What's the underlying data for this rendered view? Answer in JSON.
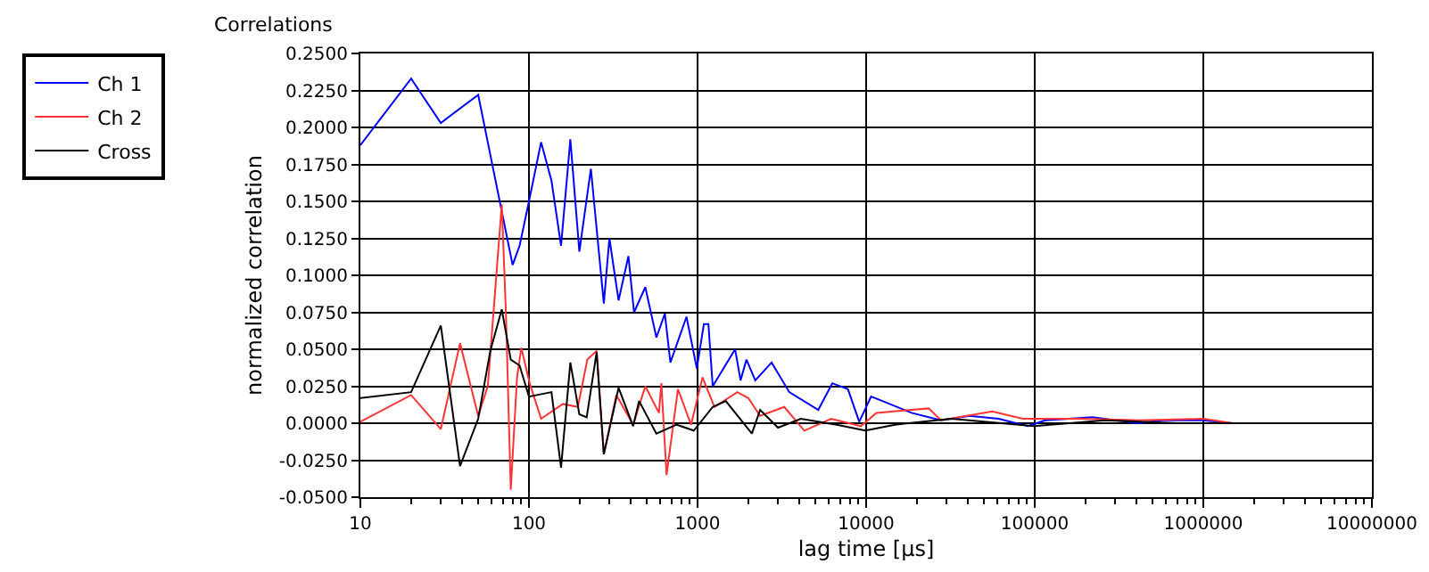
{
  "chart_data": {
    "type": "line",
    "title": "Correlations",
    "xlabel": "lag time [µs]",
    "ylabel": "normalized correlation",
    "log": "x",
    "grid": true,
    "legend": "top left",
    "marker": "none",
    "line_style": "solid",
    "xlim": [
      10,
      10000000
    ],
    "xticks": [
      10,
      100,
      1000,
      10000,
      100000,
      1000000,
      10000000
    ],
    "ylim": [
      -0.05,
      0.25
    ],
    "yticks": [
      {
        "value": -0.05,
        "label": "-0.0500"
      },
      {
        "value": -0.025,
        "label": "-0.0250"
      },
      {
        "value": 0,
        "label": "0.0000"
      },
      {
        "value": 0.025,
        "label": "0.0250"
      },
      {
        "value": 0.05,
        "label": "0.0500"
      },
      {
        "value": 0.075,
        "label": "0.0750"
      },
      {
        "value": 0.1,
        "label": "0.1000"
      },
      {
        "value": 0.125,
        "label": "0.1250"
      },
      {
        "value": 0.15,
        "label": "0.1500"
      },
      {
        "value": 0.175,
        "label": "0.1750"
      },
      {
        "value": 0.2,
        "label": "0.2000"
      },
      {
        "value": 0.225,
        "label": "0.2250"
      },
      {
        "value": 0.25,
        "label": "0.2500"
      }
    ],
    "series": [
      {
        "name": "Ch 1",
        "color": "#0000ff",
        "x": [
          10,
          20,
          30,
          50,
          80,
          88,
          100,
          118,
          136,
          155,
          176,
          199,
          233,
          278,
          300,
          340,
          389,
          420,
          490,
          570,
          640,
          690,
          860,
          990,
          1090,
          1160,
          1230,
          1260,
          1670,
          1800,
          1950,
          2200,
          2750,
          3500,
          5200,
          6300,
          7800,
          9100,
          10700,
          12500,
          18600,
          27800,
          41000,
          61000,
          91000,
          115000,
          220000,
          410000,
          570000,
          1000000,
          1500000
        ],
        "values": [
          0.188,
          0.233,
          0.203,
          0.222,
          0.107,
          0.12,
          0.15,
          0.19,
          0.164,
          0.12,
          0.192,
          0.116,
          0.172,
          0.081,
          0.125,
          0.083,
          0.113,
          0.075,
          0.092,
          0.058,
          0.074,
          0.041,
          0.072,
          0.037,
          0.067,
          0.067,
          0.025,
          0.027,
          0.05,
          0.029,
          0.043,
          0.029,
          0.041,
          0.021,
          0.009,
          0.027,
          0.023,
          0.001,
          0.018,
          0.015,
          0.007,
          0.002,
          0.005,
          0.003,
          -0.002,
          0.002,
          0.004,
          0,
          0.002,
          0.002,
          0
        ]
      },
      {
        "name": "Ch 2",
        "color": "#ff3333",
        "x": [
          10,
          20,
          30,
          39,
          50,
          57,
          69,
          73,
          78,
          85,
          90,
          101,
          118,
          159,
          195,
          222,
          252,
          278,
          330,
          415,
          490,
          590,
          610,
          655,
          765,
          915,
          1070,
          1260,
          1720,
          2000,
          2350,
          3270,
          4300,
          6200,
          9300,
          11500,
          23500,
          27800,
          56000,
          85000,
          185000,
          410000,
          1000000,
          1500000
        ],
        "values": [
          0.001,
          0.019,
          -0.004,
          0.054,
          0.005,
          0.025,
          0.148,
          0.075,
          -0.045,
          0.031,
          0.051,
          0.027,
          0.003,
          0.013,
          0.011,
          0.043,
          0.049,
          -0.021,
          0.019,
          -0.001,
          0.025,
          0.007,
          0.027,
          -0.035,
          0.023,
          -0.001,
          0.031,
          0.011,
          0.021,
          0.017,
          0.005,
          0.011,
          -0.005,
          0.003,
          -0.002,
          0.007,
          0.01,
          0.002,
          0.008,
          0.003,
          0.003,
          0.002,
          0.003,
          0
        ]
      },
      {
        "name": "Cross",
        "color": "#000000",
        "x": [
          10,
          20,
          30,
          39,
          50,
          59,
          69,
          78,
          88,
          100,
          136,
          155,
          176,
          199,
          220,
          252,
          278,
          340,
          415,
          450,
          570,
          750,
          950,
          1230,
          1470,
          2100,
          2350,
          3000,
          4100,
          6700,
          9900,
          14800,
          32000,
          99000,
          260000,
          700000,
          1500000
        ],
        "values": [
          0.017,
          0.021,
          0.066,
          -0.029,
          0.003,
          0.049,
          0.077,
          0.043,
          0.039,
          0.018,
          0.021,
          -0.03,
          0.041,
          0.006,
          0.004,
          0.048,
          -0.021,
          0.024,
          -0.002,
          0.015,
          -0.007,
          -0.001,
          -0.005,
          0.011,
          0.015,
          -0.007,
          0.009,
          -0.003,
          0.003,
          -0.001,
          -0.005,
          -0.001,
          0.003,
          -0.002,
          0.002,
          0,
          0
        ]
      }
    ]
  }
}
